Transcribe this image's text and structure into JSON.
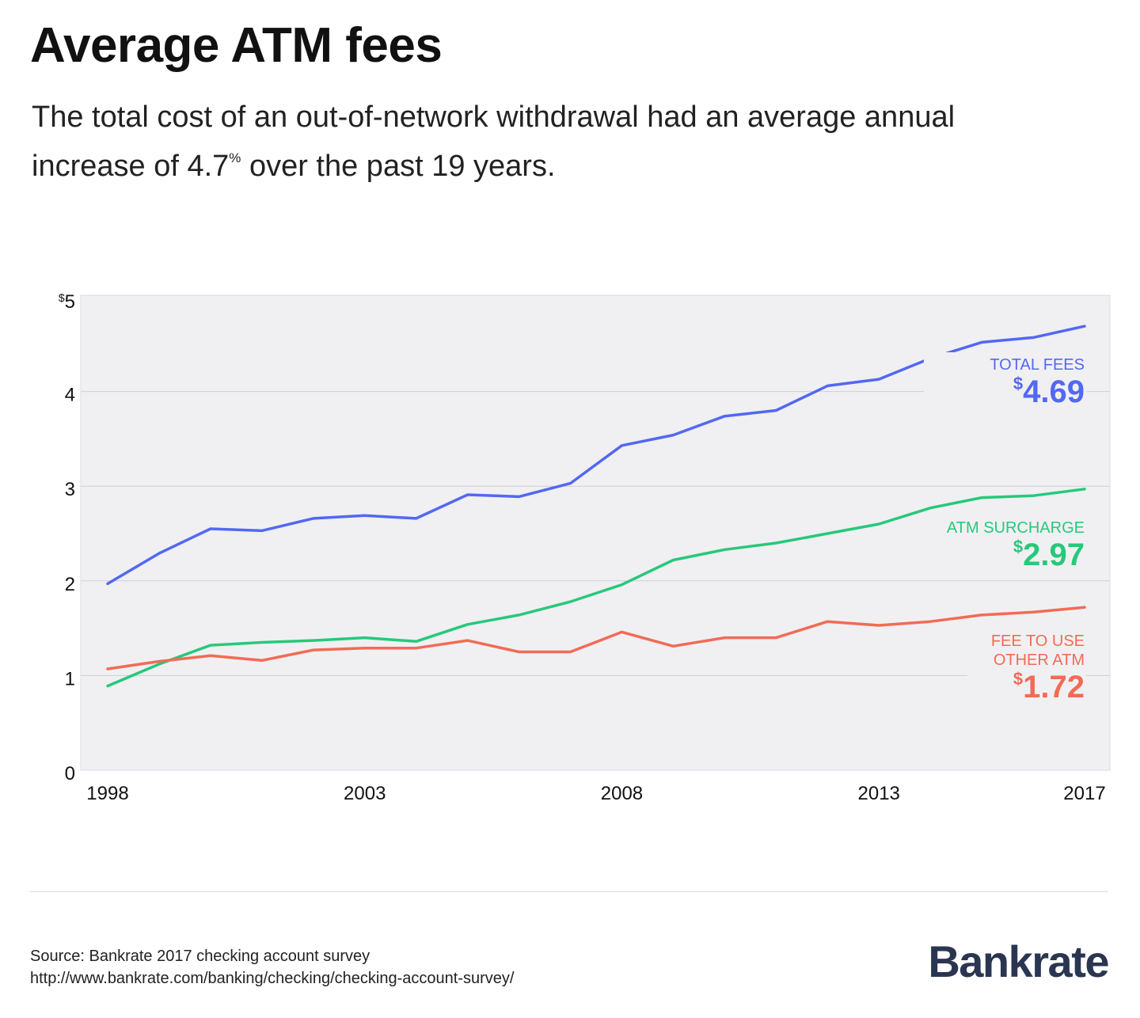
{
  "header": {
    "title": "Average ATM fees",
    "subtitle_main": "The total cost of an out-of-network withdrawal had an average annual increase of 4.7",
    "subtitle_pct": "%",
    "subtitle_end": " over the past 19 years."
  },
  "footer": {
    "source": "Source: Bankrate 2017 checking account survey",
    "url": "http://www.bankrate.com/banking/checking/checking-account-survey/",
    "logo": "Bankrate"
  },
  "colors": {
    "total": "#5368f2",
    "surcharge": "#26c97a",
    "other": "#f26b55",
    "plot_bg": "#f0f0f3",
    "grid": "#d0d0d4",
    "tick_text": "#111111"
  },
  "chart_data": {
    "type": "line",
    "x": [
      1998,
      1999,
      2000,
      2001,
      2002,
      2003,
      2004,
      2005,
      2006,
      2007,
      2008,
      2009,
      2010,
      2011,
      2012,
      2013,
      2014,
      2015,
      2016,
      2017
    ],
    "xlim": [
      1998,
      2017
    ],
    "ylim": [
      0,
      5
    ],
    "y_ticks": [
      {
        "value": 0,
        "label": "0"
      },
      {
        "value": 1,
        "label": "1"
      },
      {
        "value": 2,
        "label": "2"
      },
      {
        "value": 3,
        "label": "3"
      },
      {
        "value": 4,
        "label": "4"
      },
      {
        "value": 5,
        "label": "5",
        "prefix": "$"
      }
    ],
    "x_ticks": [
      {
        "value": 1998,
        "label": "1998"
      },
      {
        "value": 2003,
        "label": "2003"
      },
      {
        "value": 2008,
        "label": "2008"
      },
      {
        "value": 2013,
        "label": "2013"
      },
      {
        "value": 2017,
        "label": "2017"
      }
    ],
    "grid": true,
    "series": [
      {
        "key": "total",
        "name": "TOTAL FEES",
        "label_lines": [
          "TOTAL FEES"
        ],
        "final_value": "4.69",
        "currency": "$",
        "values": [
          1.97,
          2.29,
          2.55,
          2.53,
          2.66,
          2.69,
          2.66,
          2.91,
          2.89,
          3.03,
          3.43,
          3.54,
          3.74,
          3.8,
          4.06,
          4.13,
          4.35,
          4.52,
          4.57,
          4.69
        ]
      },
      {
        "key": "surcharge",
        "name": "ATM SURCHARGE",
        "label_lines": [
          "ATM SURCHARGE"
        ],
        "final_value": "2.97",
        "currency": "$",
        "values": [
          0.89,
          1.12,
          1.32,
          1.35,
          1.37,
          1.4,
          1.36,
          1.54,
          1.64,
          1.78,
          1.96,
          2.22,
          2.33,
          2.4,
          2.5,
          2.6,
          2.77,
          2.88,
          2.9,
          2.97
        ]
      },
      {
        "key": "other",
        "name": "FEE TO USE OTHER ATM",
        "label_lines": [
          "FEE TO USE",
          "OTHER ATM"
        ],
        "final_value": "1.72",
        "currency": "$",
        "values": [
          1.07,
          1.15,
          1.21,
          1.16,
          1.27,
          1.29,
          1.29,
          1.37,
          1.25,
          1.25,
          1.46,
          1.31,
          1.4,
          1.4,
          1.57,
          1.53,
          1.57,
          1.64,
          1.67,
          1.72
        ]
      }
    ]
  }
}
